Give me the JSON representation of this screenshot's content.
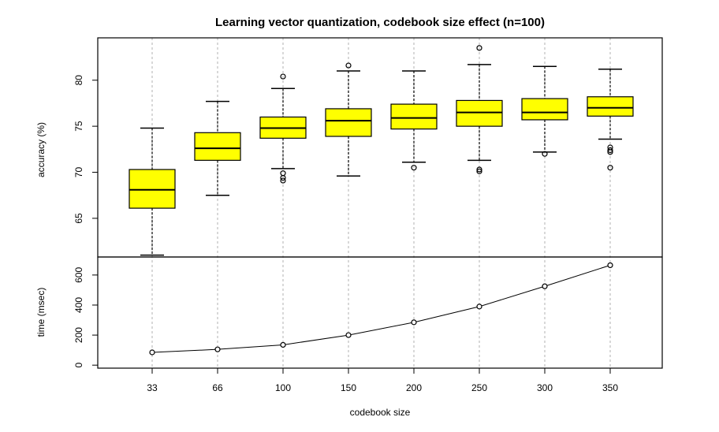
{
  "chart_data": {
    "title": "Learning vector quantization, codebook size effect (n=100)",
    "xlabel": "codebook size",
    "categories": [
      "33",
      "66",
      "100",
      "150",
      "200",
      "250",
      "300",
      "350"
    ],
    "grid": "vertical dashed",
    "panels": [
      {
        "type": "box",
        "ylabel": "accuracy (%)",
        "ylim": [
          60.8,
          84.6
        ],
        "yticks": [
          65,
          70,
          75,
          80
        ],
        "box_color": "#ffff00",
        "boxes": [
          {
            "category": "33",
            "whisker_low": 61.0,
            "q1": 66.1,
            "median": 68.1,
            "q3": 70.3,
            "whisker_high": 74.8,
            "outliers": []
          },
          {
            "category": "66",
            "whisker_low": 67.5,
            "q1": 71.3,
            "median": 72.6,
            "q3": 74.3,
            "whisker_high": 77.7,
            "outliers": []
          },
          {
            "category": "100",
            "whisker_low": 70.4,
            "q1": 73.7,
            "median": 74.8,
            "q3": 76.0,
            "whisker_high": 79.1,
            "outliers": [
              80.4,
              69.9,
              69.4,
              69.1
            ]
          },
          {
            "category": "150",
            "whisker_low": 69.6,
            "q1": 73.9,
            "median": 75.6,
            "q3": 76.9,
            "whisker_high": 81.0,
            "outliers": [
              81.6
            ]
          },
          {
            "category": "200",
            "whisker_low": 71.1,
            "q1": 74.7,
            "median": 75.9,
            "q3": 77.4,
            "whisker_high": 81.0,
            "outliers": [
              70.5
            ]
          },
          {
            "category": "250",
            "whisker_low": 71.3,
            "q1": 75.0,
            "median": 76.5,
            "q3": 77.8,
            "whisker_high": 81.7,
            "outliers": [
              83.5,
              70.3,
              70.1
            ]
          },
          {
            "category": "300",
            "whisker_low": 72.2,
            "q1": 75.7,
            "median": 76.5,
            "q3": 78.0,
            "whisker_high": 81.5,
            "outliers": [
              72.0
            ]
          },
          {
            "category": "350",
            "whisker_low": 73.6,
            "q1": 76.1,
            "median": 77.0,
            "q3": 78.2,
            "whisker_high": 81.2,
            "outliers": [
              72.7,
              72.4,
              72.2,
              70.5
            ]
          }
        ]
      },
      {
        "type": "line",
        "ylabel": "time (msec)",
        "ylim": [
          -20,
          720
        ],
        "yticks": [
          0,
          200,
          400,
          600
        ],
        "values": [
          85,
          105,
          135,
          200,
          285,
          390,
          525,
          665
        ]
      }
    ]
  }
}
